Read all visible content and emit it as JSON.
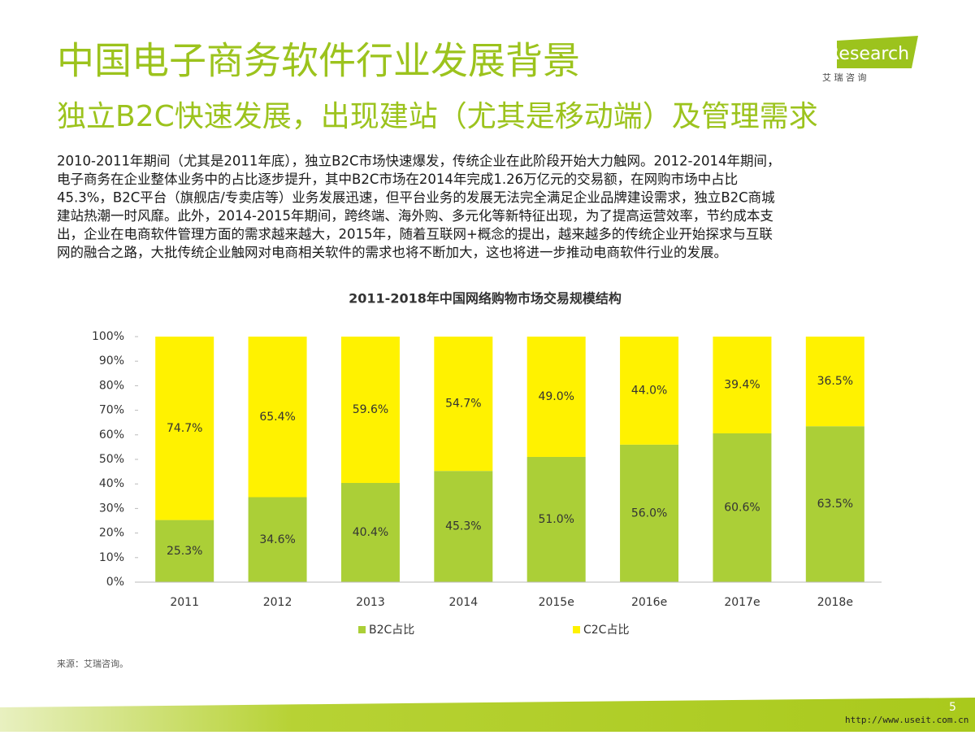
{
  "header": {
    "title": "中国电子商务软件行业发展背景",
    "subtitle": "独立B2C快速发展，出现建站（尤其是移动端）及管理需求",
    "logo": "iResearch",
    "logo_sub": "艾 瑞 咨 询"
  },
  "paragraph": {
    "lines": [
      "2010-2011年期间（尤其是2011年底），独立B2C市场快速爆发，传统企业在此阶段开始大力触网。2012-2014年期间，",
      "电子商务在企业整体业务中的占比逐步提升，其中B2C市场在2014年完成1.26万亿元的交易额，在网购市场中占比",
      "45.3%，B2C平台（旗舰店/专卖店等）业务发展迅速，但平台业务的发展无法完全满足企业品牌建设需求，独立B2C商城",
      "建站热潮一时风靡。此外，2014-2015年期间，跨终端、海外购、多元化等新特征出现，为了提高运营效率，节约成本支",
      "出，企业在电商软件管理方面的需求越来越大，2015年，随着互联网+概念的提出，越来越多的传统企业开始探求与互联",
      "网的融合之路，大批传统企业触网对电商相关软件的需求也将不断加大，这也将进一步推动电商软件行业的发展。"
    ]
  },
  "chart_data": {
    "type": "stacked_bar",
    "title": "2011-2018年中国网络购物市场交易规模结构",
    "categories": [
      "2011",
      "2012",
      "2013",
      "2014",
      "2015e",
      "2016e",
      "2017e",
      "2018e"
    ],
    "series": [
      {
        "name": "B2C占比",
        "color": "#abcf37",
        "values": [
          25.3,
          34.6,
          40.4,
          45.3,
          51.0,
          56.0,
          60.6,
          63.5
        ],
        "value_labels": [
          "25.3%",
          "34.6%",
          "40.4%",
          "45.3%",
          "51.0%",
          "56.0%",
          "60.6%",
          "63.5%"
        ]
      },
      {
        "name": "C2C占比",
        "color": "#fff200",
        "values": [
          74.7,
          65.4,
          59.6,
          54.7,
          49.0,
          44.0,
          39.4,
          36.5
        ],
        "value_labels": [
          "74.7%",
          "65.4%",
          "59.6%",
          "54.7%",
          "49.0%",
          "44.0%",
          "39.4%",
          "36.5%"
        ]
      }
    ],
    "ylim": [
      0,
      100
    ],
    "yticks": [
      {
        "value": 0,
        "label": "0%"
      },
      {
        "value": 10,
        "label": "10%"
      },
      {
        "value": 20,
        "label": "20%"
      },
      {
        "value": 30,
        "label": "30%"
      },
      {
        "value": 40,
        "label": "40%"
      },
      {
        "value": 50,
        "label": "50%"
      },
      {
        "value": 60,
        "label": "60%"
      },
      {
        "value": 70,
        "label": "70%"
      },
      {
        "value": 80,
        "label": "80%"
      },
      {
        "value": 90,
        "label": "90%"
      },
      {
        "value": 100,
        "label": "100%"
      }
    ],
    "grid": false,
    "legend": "bottom"
  },
  "footer": {
    "source": "来源：艾瑞咨询。",
    "watermark": "http://www.useit.com.cn",
    "page": "5"
  }
}
